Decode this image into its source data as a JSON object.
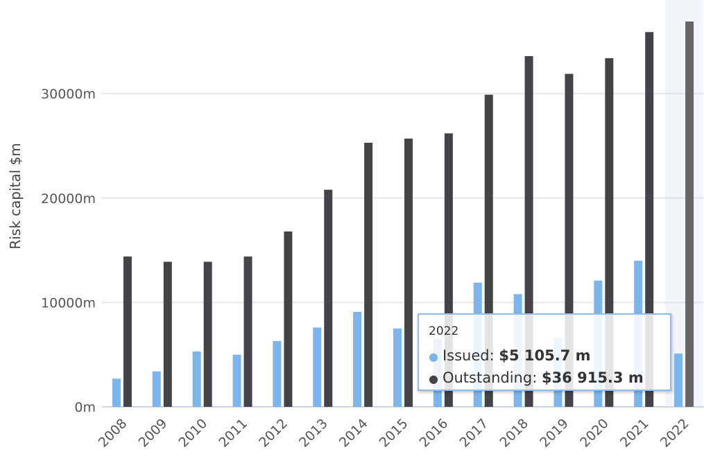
{
  "chart_data": {
    "type": "bar",
    "title": "",
    "xlabel": "",
    "ylabel": "Risk capital $m",
    "categories": [
      "2008",
      "2009",
      "2010",
      "2011",
      "2012",
      "2013",
      "2014",
      "2015",
      "2016",
      "2017",
      "2018",
      "2019",
      "2020",
      "2021",
      "2022"
    ],
    "series": [
      {
        "name": "Issued",
        "color": "#7cb5ec",
        "values": [
          2700,
          3400,
          5300,
          5000,
          6300,
          7600,
          9100,
          7500,
          6500,
          11900,
          10800,
          6600,
          12100,
          14000,
          5105.7
        ]
      },
      {
        "name": "Outstanding",
        "color": "#434348",
        "highlight_color": "#666666",
        "values": [
          14400,
          13900,
          13900,
          14400,
          16800,
          20800,
          25300,
          25700,
          26200,
          29900,
          33600,
          31900,
          33400,
          35900,
          36915.3
        ]
      }
    ],
    "ylim": [
      0,
      36915.3
    ],
    "yticks": [
      {
        "value": 0,
        "label": "0m"
      },
      {
        "value": 10000,
        "label": "10000m"
      },
      {
        "value": 20000,
        "label": "20000m"
      },
      {
        "value": 30000,
        "label": "30000m"
      }
    ],
    "grid": true,
    "highlighted_category": "2022"
  },
  "tooltip": {
    "header": "2022",
    "rows": [
      {
        "dot": "●",
        "color": "#7cb5ec",
        "label": "Issued: ",
        "value": "$5 105.7 m"
      },
      {
        "dot": "●",
        "color": "#434348",
        "label": "Outstanding: ",
        "value": "$36 915.3 m"
      }
    ]
  }
}
